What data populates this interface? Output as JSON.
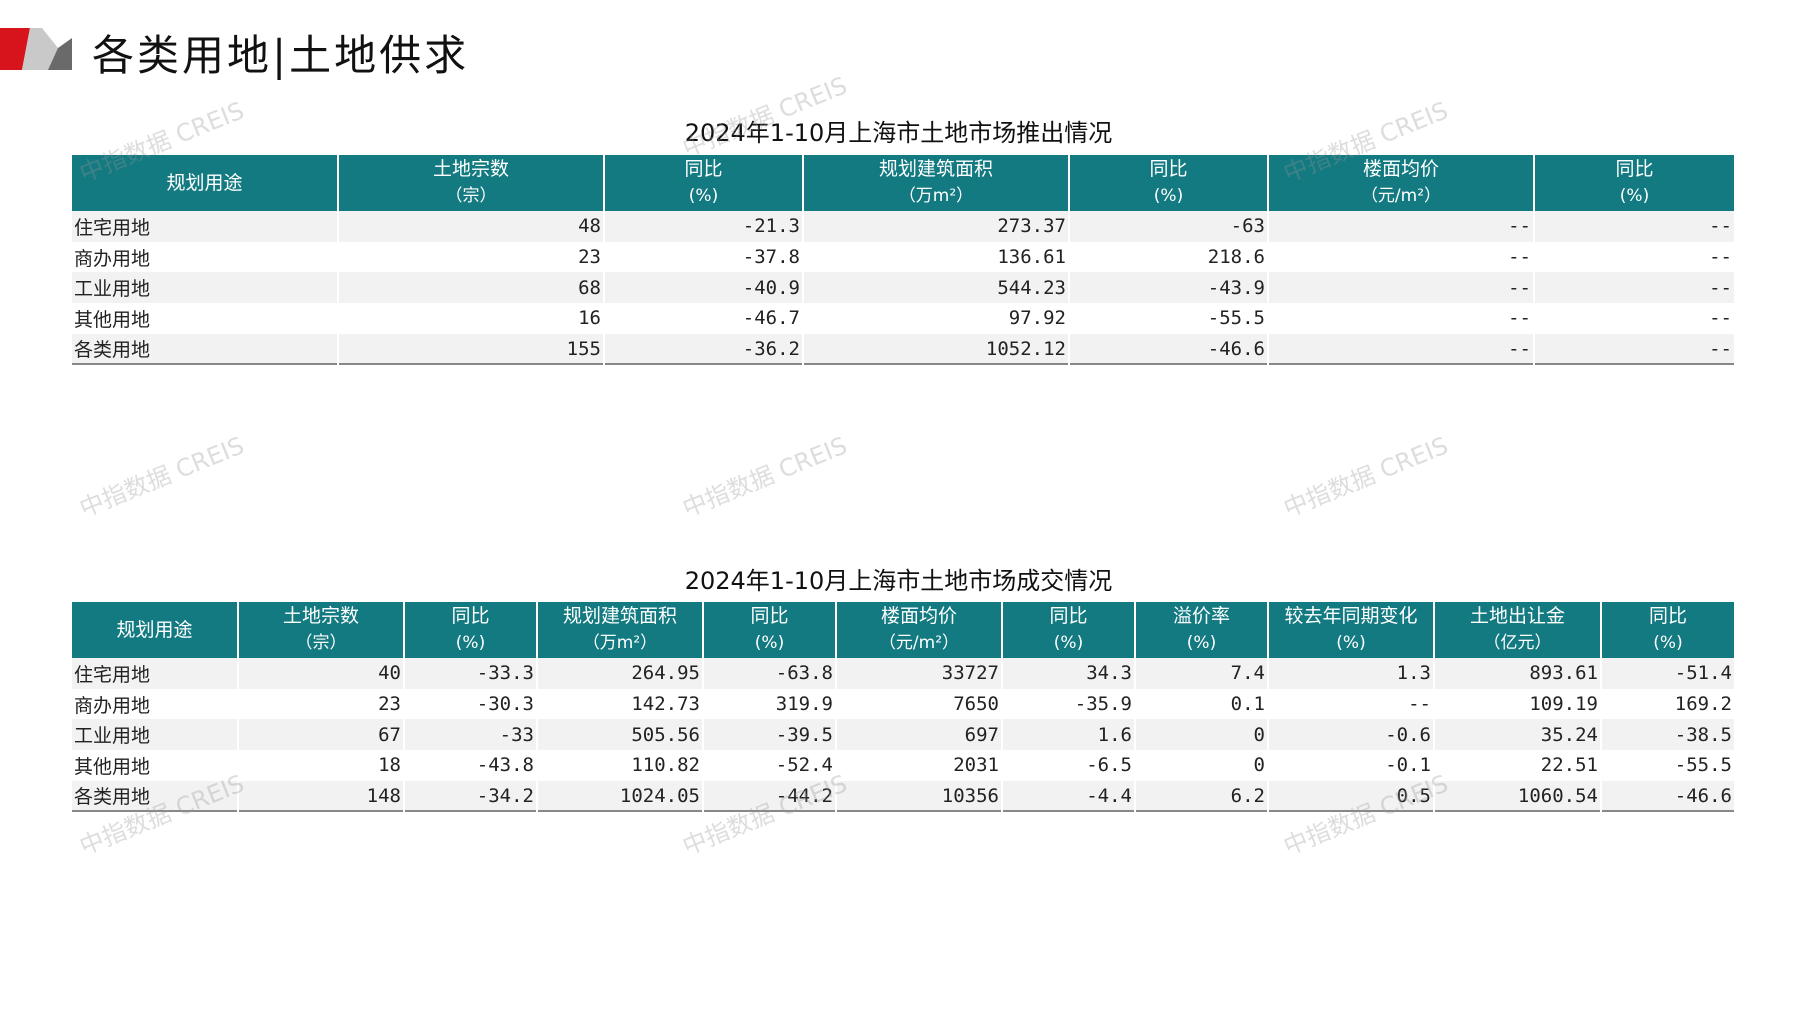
{
  "header": {
    "title": "各类用地|土地供求",
    "accent_red": "#d7141c",
    "accent_gray": "#b5b5b5"
  },
  "watermark": "中指数据 CREIS",
  "table1": {
    "title": "2024年1-10月上海市土地市场推出情况",
    "header_color": "#127a80",
    "columns": [
      {
        "label": "规划用途",
        "sub": ""
      },
      {
        "label": "土地宗数",
        "sub": "（宗）"
      },
      {
        "label": "同比",
        "sub": "(%)"
      },
      {
        "label": "规划建筑面积",
        "sub": "（万m²）"
      },
      {
        "label": "同比",
        "sub": "(%)"
      },
      {
        "label": "楼面均价",
        "sub": "（元/m²）"
      },
      {
        "label": "同比",
        "sub": "(%)"
      }
    ],
    "rows": [
      [
        "住宅用地",
        "48",
        "-21.3",
        "273.37",
        "-63",
        "--",
        "--"
      ],
      [
        "商办用地",
        "23",
        "-37.8",
        "136.61",
        "218.6",
        "--",
        "--"
      ],
      [
        "工业用地",
        "68",
        "-40.9",
        "544.23",
        "-43.9",
        "--",
        "--"
      ],
      [
        "其他用地",
        "16",
        "-46.7",
        "97.92",
        "-55.5",
        "--",
        "--"
      ],
      [
        "各类用地",
        "155",
        "-36.2",
        "1052.12",
        "-46.6",
        "--",
        "--"
      ]
    ]
  },
  "table2": {
    "title": "2024年1-10月上海市土地市场成交情况",
    "header_color": "#127a80",
    "columns": [
      {
        "label": "规划用途",
        "sub": ""
      },
      {
        "label": "土地宗数",
        "sub": "（宗）"
      },
      {
        "label": "同比",
        "sub": "(%)"
      },
      {
        "label": "规划建筑面积",
        "sub": "（万m²）"
      },
      {
        "label": "同比",
        "sub": "(%)"
      },
      {
        "label": "楼面均价",
        "sub": "（元/m²）"
      },
      {
        "label": "同比",
        "sub": "(%)"
      },
      {
        "label": "溢价率",
        "sub": "(%)"
      },
      {
        "label": "较去年同期变化",
        "sub": "(%)"
      },
      {
        "label": "土地出让金",
        "sub": "（亿元）"
      },
      {
        "label": "同比",
        "sub": "(%)"
      }
    ],
    "rows": [
      [
        "住宅用地",
        "40",
        "-33.3",
        "264.95",
        "-63.8",
        "33727",
        "34.3",
        "7.4",
        "1.3",
        "893.61",
        "-51.4"
      ],
      [
        "商办用地",
        "23",
        "-30.3",
        "142.73",
        "319.9",
        "7650",
        "-35.9",
        "0.1",
        "--",
        "109.19",
        "169.2"
      ],
      [
        "工业用地",
        "67",
        "-33",
        "505.56",
        "-39.5",
        "697",
        "1.6",
        "0",
        "-0.6",
        "35.24",
        "-38.5"
      ],
      [
        "其他用地",
        "18",
        "-43.8",
        "110.82",
        "-52.4",
        "2031",
        "-6.5",
        "0",
        "-0.1",
        "22.51",
        "-55.5"
      ],
      [
        "各类用地",
        "148",
        "-34.2",
        "1024.05",
        "-44.2",
        "10356",
        "-4.4",
        "6.2",
        "0.5",
        "1060.54",
        "-46.6"
      ]
    ]
  }
}
